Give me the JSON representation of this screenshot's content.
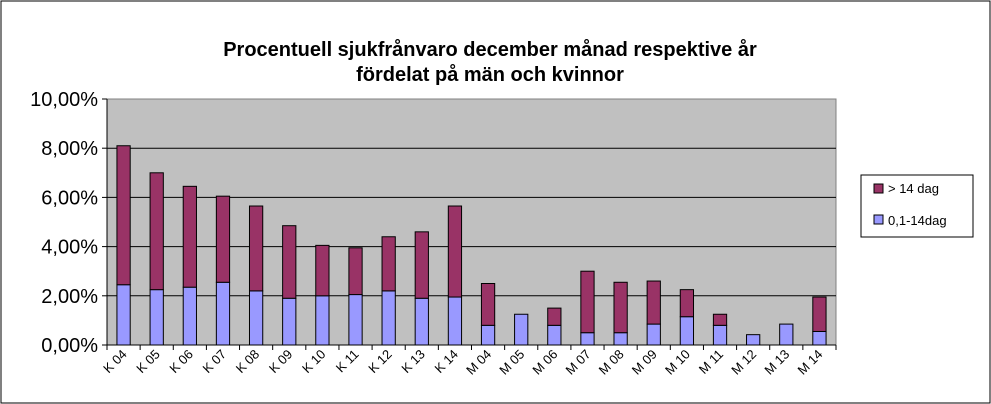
{
  "chart_data": {
    "type": "bar",
    "stacked": true,
    "title_line1": "Procentuell sjukfrånvaro december månad respektive år",
    "title_line2": "fördelat på män och kvinnor",
    "xlabel": "",
    "ylabel": "",
    "ylim": [
      0,
      10
    ],
    "yticks": [
      "0,00%",
      "2,00%",
      "4,00%",
      "6,00%",
      "8,00%",
      "10,00%"
    ],
    "grid": true,
    "legend_position": "right",
    "categories": [
      "K 04",
      "K 05",
      "K 06",
      "K 07",
      "K 08",
      "K 09",
      "K 10",
      "K 11",
      "K 12",
      "K 13",
      "K 14",
      "M 04",
      "M 05",
      "M 06",
      "M 07",
      "M 08",
      "M 09",
      "M 10",
      "M 11",
      "M 12",
      "M 13",
      "M 14"
    ],
    "series": [
      {
        "name": "0,1-14dag",
        "color": "#9999ff",
        "values": [
          2.45,
          2.25,
          2.35,
          2.55,
          2.2,
          1.9,
          2.0,
          2.05,
          2.2,
          1.9,
          1.95,
          0.8,
          1.25,
          0.8,
          0.5,
          0.5,
          0.85,
          1.15,
          0.8,
          0.42,
          0.85,
          0.55
        ]
      },
      {
        "name": "> 14 dag",
        "color": "#993366",
        "values": [
          5.65,
          4.75,
          4.1,
          3.5,
          3.45,
          2.95,
          2.05,
          1.9,
          2.2,
          2.7,
          3.7,
          1.7,
          0.0,
          0.7,
          2.5,
          2.05,
          1.75,
          1.1,
          0.45,
          0.0,
          0.0,
          1.4
        ]
      }
    ],
    "plot_bg": "#c0c0c0",
    "border_color": "#000000"
  }
}
